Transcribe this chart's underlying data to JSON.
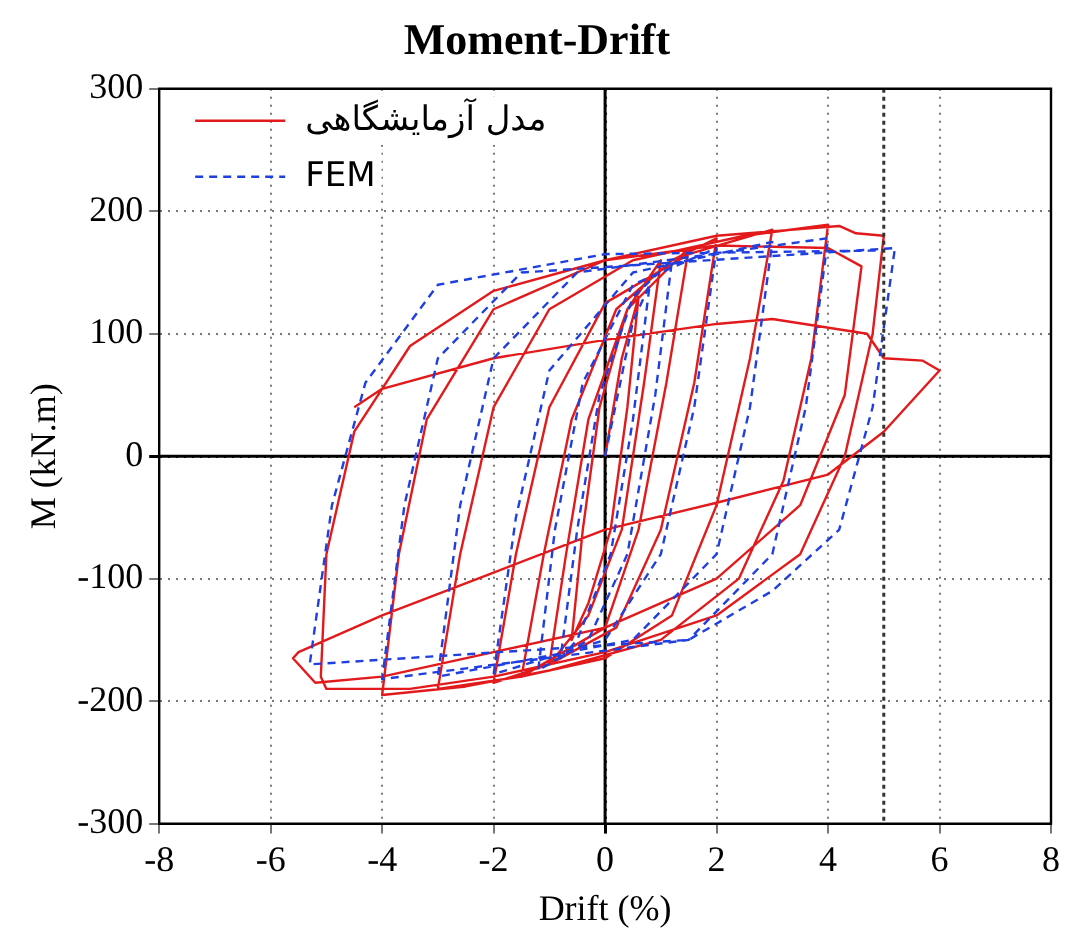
{
  "chart_data": {
    "type": "line",
    "title": "Moment-Drift",
    "xlabel": "Drift (%)",
    "ylabel": "M (kN.m)",
    "xlim": [
      -8,
      8
    ],
    "xticks": [
      -8,
      -6,
      -4,
      -2,
      0,
      2,
      4,
      6,
      8
    ],
    "ylim": [
      -300,
      300
    ],
    "yticks": [
      -300,
      -200,
      -100,
      0,
      100,
      200,
      300
    ],
    "grid": true,
    "legend": "top left",
    "marker": "none",
    "ref_lines": [
      {
        "axis": "x",
        "value": 5,
        "color": "#333333",
        "line_style": "dotted"
      }
    ],
    "series": [
      {
        "name": "مدل آزمایشگاهی",
        "color": "#e31a1c",
        "line_style": "solid",
        "x": [
          0,
          0.3,
          0.6,
          0.4,
          0.1,
          -0.3,
          -0.6,
          -0.4,
          -0.1,
          0.4,
          1.0,
          0.7,
          0.3,
          -0.3,
          -1.0,
          -0.7,
          -0.3,
          0.4,
          1.5,
          1.1,
          0.6,
          0,
          -1.5,
          -1.1,
          -0.6,
          0.2,
          1.2,
          2.0,
          1.6,
          1.0,
          0.2,
          -1,
          -2,
          -1.6,
          -1.0,
          0,
          1.5,
          3.0,
          2.6,
          2.0,
          1.2,
          0,
          -1.5,
          -3.0,
          -2.6,
          -2.0,
          -1.0,
          0.5,
          2.5,
          4.0,
          3.7,
          3.2,
          2.4,
          1,
          -1,
          -2.5,
          -4.0,
          -3.7,
          -3.2,
          -2,
          0,
          2,
          4.2,
          4.5,
          5.0,
          4.8,
          4.3,
          3.5,
          2.0,
          0,
          -2,
          -3.5,
          -5.0,
          -5.1,
          -5.0,
          -4.5,
          -3.5,
          -2,
          0,
          2,
          4.0,
          4.6,
          4.3,
          3.5,
          2,
          0,
          -2,
          -4,
          -5.2,
          -5.6,
          -5.5,
          -4,
          -2,
          0,
          2,
          4,
          5,
          6,
          5.7,
          5,
          4.7,
          3,
          2,
          0,
          -2,
          -4,
          -4.5
        ],
        "values": [
          0,
          80,
          130,
          40,
          -60,
          -120,
          -150,
          -60,
          40,
          120,
          160,
          60,
          -60,
          -130,
          -170,
          -80,
          30,
          120,
          170,
          60,
          -60,
          -140,
          -180,
          -80,
          30,
          120,
          160,
          178,
          60,
          -60,
          -140,
          -170,
          -185,
          -80,
          40,
          125,
          165,
          185,
          80,
          -40,
          -130,
          -165,
          -180,
          -190,
          -80,
          40,
          120,
          160,
          180,
          189,
          80,
          -20,
          -100,
          -150,
          -175,
          -188,
          -195,
          -80,
          30,
          120,
          160,
          180,
          188,
          182,
          180,
          100,
          0,
          -80,
          -130,
          -160,
          -180,
          -190,
          -190,
          -180,
          -80,
          20,
          90,
          135,
          160,
          172,
          170,
          155,
          50,
          -40,
          -100,
          -140,
          -160,
          -180,
          -185,
          -165,
          -160,
          -130,
          -95,
          -60,
          -38,
          -15,
          20,
          70,
          78,
          80,
          100,
          112,
          108,
          95,
          80,
          55,
          40
        ]
      },
      {
        "name": "FEM",
        "color": "#1f3fe0",
        "line_style": "dashed",
        "x": [
          0,
          0.5,
          0.8,
          0.5,
          0.1,
          -0.5,
          -0.8,
          -0.5,
          -0.1,
          0.5,
          1.2,
          0.9,
          0.4,
          -0.3,
          -1.2,
          -0.9,
          -0.4,
          0.5,
          2.0,
          1.6,
          1.0,
          0,
          -2.0,
          -1.6,
          -1.0,
          0.5,
          3.0,
          2.6,
          2.0,
          0.5,
          -3.0,
          -2.6,
          -2.0,
          -0.5,
          4.0,
          3.6,
          3.0,
          1.5,
          -4.0,
          -3.6,
          -3.0,
          -1.5,
          5.2,
          4.8,
          4.2,
          3.0,
          1.5,
          -5.3,
          -4.9,
          -4.3,
          -3,
          0,
          5.0
        ],
        "values": [
          0,
          110,
          140,
          30,
          -80,
          -150,
          -165,
          -60,
          50,
          130,
          160,
          50,
          -80,
          -150,
          -175,
          -60,
          60,
          140,
          170,
          40,
          -80,
          -150,
          -178,
          -50,
          70,
          150,
          175,
          40,
          -80,
          -150,
          -180,
          -40,
          80,
          150,
          178,
          40,
          -80,
          -150,
          -182,
          -40,
          80,
          150,
          170,
          40,
          -60,
          -110,
          -150,
          -170,
          -40,
          60,
          140,
          165,
          168
        ]
      }
    ]
  }
}
